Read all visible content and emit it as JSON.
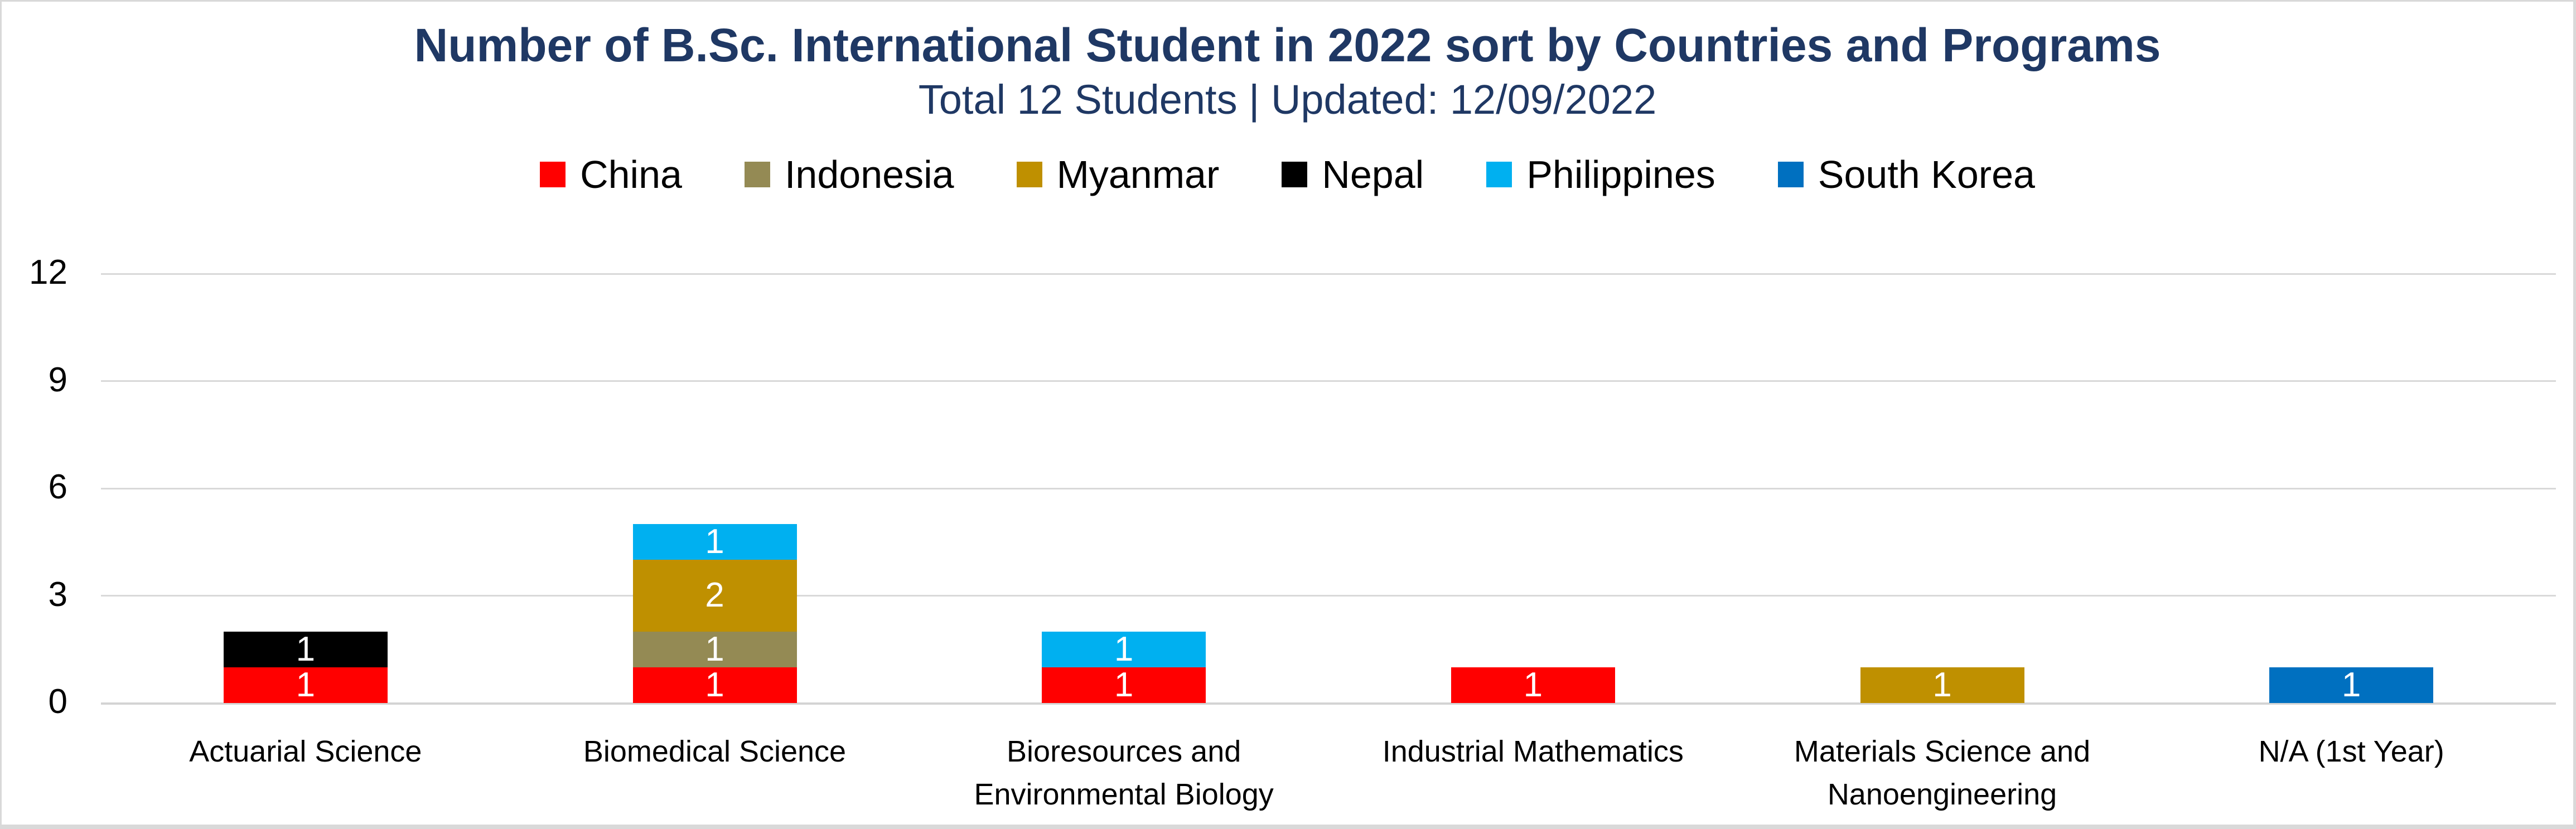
{
  "chart_data": {
    "type": "bar",
    "stacked": true,
    "title": "Number of B.Sc. International Student in 2022 sort by Countries and Programs",
    "subtitle": "Total 12 Students | Updated: 12/09/2022",
    "title_color": "#1F3864",
    "categories": [
      "Actuarial Science",
      "Biomedical Science",
      "Bioresources and\nEnvironmental Biology",
      "Industrial Mathematics",
      "Materials Science and\nNanoengineering",
      "N/A (1st Year)"
    ],
    "series": [
      {
        "name": "China",
        "color": "#FF0000",
        "values": [
          1,
          1,
          1,
          1,
          0,
          0
        ]
      },
      {
        "name": "Indonesia",
        "color": "#948A54",
        "values": [
          0,
          1,
          0,
          0,
          0,
          0
        ]
      },
      {
        "name": "Myanmar",
        "color": "#BF9000",
        "values": [
          0,
          2,
          0,
          0,
          1,
          0
        ]
      },
      {
        "name": "Nepal",
        "color": "#000000",
        "values": [
          1,
          0,
          0,
          0,
          0,
          0
        ]
      },
      {
        "name": "Philippines",
        "color": "#00B0F0",
        "values": [
          0,
          1,
          1,
          0,
          0,
          0
        ]
      },
      {
        "name": "South Korea",
        "color": "#0070C0",
        "values": [
          0,
          0,
          0,
          0,
          0,
          1
        ]
      }
    ],
    "yticks": [
      0,
      3,
      6,
      9,
      12
    ],
    "ylim": [
      0,
      12
    ],
    "ylabel": "",
    "xlabel": "",
    "grid": true,
    "gridline_color": "#D9D9D9",
    "legend_position": "top",
    "data_labels": true,
    "data_label_color": "#FFFFFF",
    "total_students": 12,
    "updated": "12/09/2022"
  }
}
